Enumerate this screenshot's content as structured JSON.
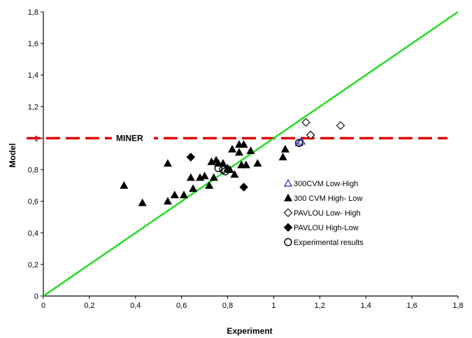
{
  "chart_data": {
    "type": "scatter",
    "xlabel": "Experiment",
    "ylabel": "Model",
    "xlim": [
      0,
      1.8
    ],
    "ylim": [
      0,
      1.8
    ],
    "xticks": [
      "0",
      "0,2",
      "0,4",
      "0,6",
      "0,8",
      "1",
      "1,2",
      "1,4",
      "1,6",
      "1,8"
    ],
    "yticks": [
      "0",
      "0,2",
      "0,4",
      "0,6",
      "0,8",
      "1",
      "1,2",
      "1,4",
      "1,6",
      "1,8"
    ],
    "grid": false,
    "legend_position": "center-right",
    "reference_lines": [
      {
        "type": "horizontal",
        "y": 1.0,
        "label": "MINER",
        "color": "#e00000",
        "style": "dashed"
      },
      {
        "type": "diagonal",
        "from": [
          0,
          0
        ],
        "to": [
          1.8,
          1.8
        ],
        "color": "#22dd22",
        "style": "solid"
      }
    ],
    "series": [
      {
        "name": "300CVM  Low-High",
        "marker": "triangle-open",
        "color": "#1f1fbf",
        "points": [
          [
            1.11,
            0.97
          ],
          [
            1.12,
            0.98
          ]
        ]
      },
      {
        "name": "300 CVM High- Low",
        "marker": "triangle-filled",
        "color": "#000000",
        "points": [
          [
            0.35,
            0.7
          ],
          [
            0.43,
            0.59
          ],
          [
            0.54,
            0.84
          ],
          [
            0.54,
            0.6
          ],
          [
            0.57,
            0.64
          ],
          [
            0.61,
            0.64
          ],
          [
            0.64,
            0.75
          ],
          [
            0.65,
            0.68
          ],
          [
            0.68,
            0.75
          ],
          [
            0.7,
            0.76
          ],
          [
            0.72,
            0.7
          ],
          [
            0.73,
            0.85
          ],
          [
            0.74,
            0.75
          ],
          [
            0.75,
            0.86
          ],
          [
            0.76,
            0.84
          ],
          [
            0.78,
            0.84
          ],
          [
            0.8,
            0.81
          ],
          [
            0.81,
            0.8
          ],
          [
            0.82,
            0.93
          ],
          [
            0.83,
            0.77
          ],
          [
            0.85,
            0.91
          ],
          [
            0.85,
            0.96
          ],
          [
            0.86,
            0.83
          ],
          [
            0.87,
            0.96
          ],
          [
            0.88,
            0.83
          ],
          [
            0.9,
            0.92
          ],
          [
            0.93,
            0.84
          ],
          [
            1.04,
            0.88
          ],
          [
            1.05,
            0.93
          ]
        ]
      },
      {
        "name": "PAVLOU  Low- High",
        "marker": "diamond-open",
        "color": "#000000",
        "points": [
          [
            1.14,
            1.1
          ],
          [
            1.16,
            1.02
          ],
          [
            1.29,
            1.08
          ]
        ]
      },
      {
        "name": "PAVLOU High-Low",
        "marker": "diamond-filled",
        "color": "#000000",
        "points": [
          [
            0.64,
            0.88
          ],
          [
            0.87,
            0.69
          ]
        ]
      },
      {
        "name": "Experimental results",
        "marker": "circle-open",
        "color": "#000000",
        "points": [
          [
            0.76,
            0.81
          ],
          [
            0.78,
            0.8
          ],
          [
            0.79,
            0.79
          ],
          [
            1.11,
            0.97
          ]
        ]
      }
    ]
  }
}
